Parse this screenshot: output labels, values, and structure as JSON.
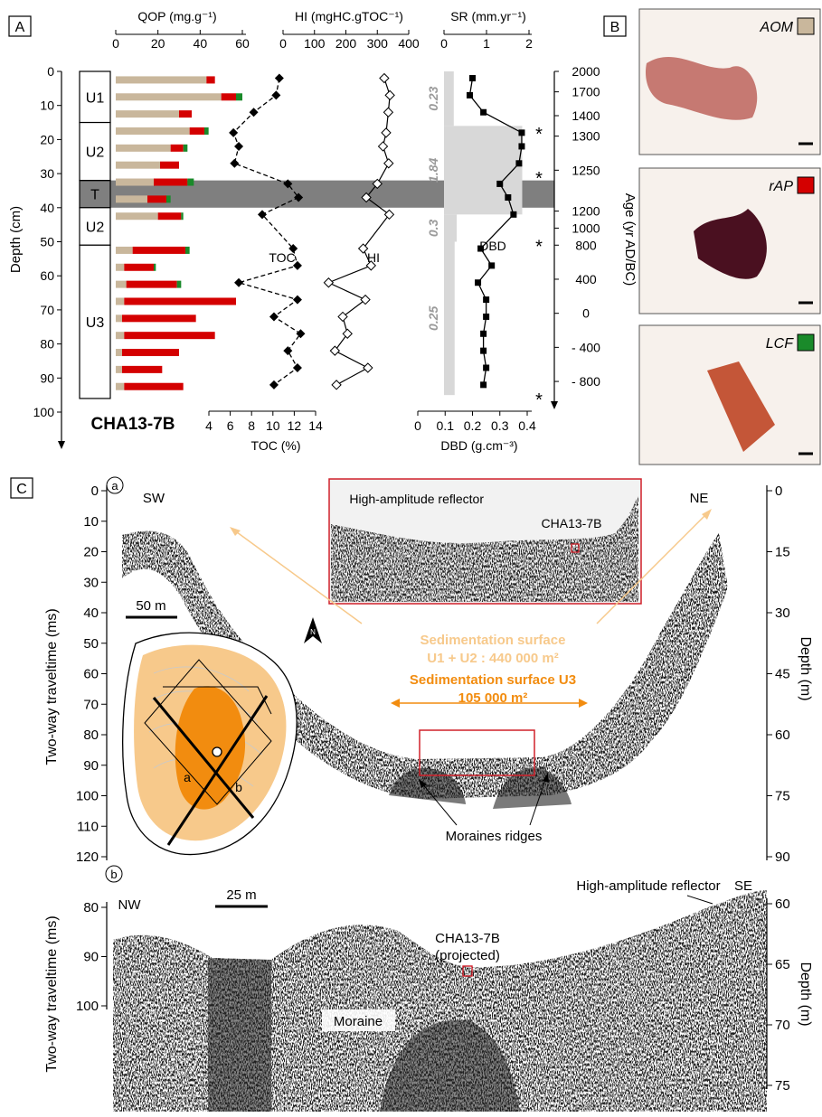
{
  "panel_letters": {
    "a": "A",
    "b": "B",
    "c": "C",
    "sub_a": "a",
    "sub_b": "b"
  },
  "core_name": "CHA13-7B",
  "depth_axis": {
    "label": "Depth (cm)",
    "ticks": [
      0,
      10,
      20,
      30,
      40,
      50,
      60,
      70,
      80,
      90,
      100
    ]
  },
  "units": [
    {
      "name": "U1",
      "top": 0,
      "bottom": 15
    },
    {
      "name": "U2",
      "top": 15,
      "bottom": 32
    },
    {
      "name": "T",
      "top": 32,
      "bottom": 40
    },
    {
      "name": "U2",
      "top": 40,
      "bottom": 51
    },
    {
      "name": "U3",
      "top": 51,
      "bottom": 96
    }
  ],
  "tephra_band": {
    "top": 32,
    "bottom": 40,
    "color": "#7f7f7f"
  },
  "colors": {
    "aom": "#c9b79c",
    "rap": "#d40000",
    "lcf": "#1a8a2a",
    "orange_light": "#f7c98b",
    "orange": "#f28c0f",
    "red_box": "#d0202a",
    "gray_sr": "#d8d8d8"
  },
  "qop": {
    "label": "QOP (mg.g⁻¹)",
    "ticks": [
      0,
      20,
      40,
      60
    ],
    "legend": {
      "aom": "AOM",
      "rap": "rAP",
      "lcf": "LCF"
    },
    "chart_data": {
      "type": "bar",
      "orientation": "horizontal",
      "depths": [
        2.5,
        7.5,
        12.5,
        17.5,
        22.5,
        27.5,
        32.5,
        37.5,
        42.5,
        52.5,
        57.5,
        62.5,
        67.5,
        72.5,
        77.5,
        82.5,
        87.5,
        92.5
      ],
      "series": [
        {
          "name": "AOM",
          "values": [
            43,
            50,
            30,
            35,
            26,
            21,
            18,
            15,
            20,
            8,
            4,
            5,
            4,
            3,
            4,
            3,
            3,
            4
          ]
        },
        {
          "name": "rAP",
          "values": [
            4,
            7,
            6,
            7,
            6,
            9,
            16,
            9,
            11,
            25,
            14,
            24,
            53,
            35,
            43,
            27,
            19,
            28
          ]
        },
        {
          "name": "LCF",
          "values": [
            0,
            3,
            0,
            2,
            2,
            0,
            3,
            2,
            1,
            2,
            1,
            2,
            0,
            0,
            0,
            0,
            0,
            0
          ]
        }
      ],
      "xlim": [
        0,
        64
      ]
    }
  },
  "hi_toc": {
    "hi_label": "HI (mgHC.gTOC⁻¹)",
    "hi_ticks": [
      0,
      100,
      200,
      300,
      400
    ],
    "toc_label": "TOC (%)",
    "toc_ticks": [
      4,
      6,
      8,
      10,
      12,
      14
    ],
    "toc_curve_label": "TOC",
    "hi_curve_label": "HI",
    "chart_data": {
      "type": "line",
      "toc": {
        "name": "TOC",
        "depth": [
          2,
          7,
          12,
          18,
          22,
          27,
          33,
          37,
          42,
          52,
          57,
          62,
          67,
          72,
          77,
          82,
          87,
          92
        ],
        "values": [
          10.6,
          10.3,
          8.2,
          6.3,
          6.8,
          6.4,
          11.4,
          12.4,
          9.0,
          11.9,
          12.3,
          6.8,
          12.3,
          10.1,
          12.6,
          11.4,
          12.3,
          10.1
        ]
      },
      "hi": {
        "name": "HI",
        "depth": [
          2,
          7,
          12,
          18,
          22,
          27,
          33,
          37,
          42,
          52,
          57,
          62,
          67,
          72,
          77,
          82,
          87,
          92
        ],
        "values": [
          322,
          340,
          335,
          328,
          318,
          336,
          300,
          265,
          338,
          255,
          280,
          145,
          262,
          190,
          205,
          165,
          270,
          170
        ]
      }
    }
  },
  "sr_dbd": {
    "sr_label": "SR (mm.yr⁻¹)",
    "sr_ticks": [
      0,
      1,
      2
    ],
    "dbd_label": "DBD (g.cm⁻³)",
    "dbd_ticks": [
      0,
      0.1,
      0.2,
      0.3,
      0.4
    ],
    "dbd_curve_label": "DBD",
    "sr_blocks": [
      {
        "top": 0,
        "bottom": 16,
        "value": 0.23,
        "label": "0.23"
      },
      {
        "top": 16,
        "bottom": 42,
        "value": 1.84,
        "label": "1.84"
      },
      {
        "top": 42,
        "bottom": 50,
        "value": 0.3,
        "label": "0.3"
      },
      {
        "top": 50,
        "bottom": 95,
        "value": 0.25,
        "label": "0.25"
      }
    ],
    "dbd_chart_data": {
      "type": "line",
      "depth": [
        2,
        7,
        12,
        18,
        22,
        27,
        33,
        37,
        42,
        52,
        57,
        62,
        67,
        72,
        77,
        82,
        87,
        92
      ],
      "values": [
        0.2,
        0.19,
        0.24,
        0.38,
        0.38,
        0.37,
        0.3,
        0.33,
        0.35,
        0.23,
        0.27,
        0.22,
        0.25,
        0.25,
        0.24,
        0.24,
        0.25,
        0.24
      ]
    },
    "tiepoint_marks": [
      {
        "depth": 17,
        "mark": "*"
      },
      {
        "depth": 30,
        "mark": "*"
      },
      {
        "depth": 50,
        "mark": "*"
      },
      {
        "depth": 95,
        "mark": "*"
      }
    ]
  },
  "age_axis": {
    "label": "Age (yr AD/BC)",
    "ticks": [
      {
        "depth": 0,
        "label": "2000"
      },
      {
        "depth": 6,
        "label": "1700"
      },
      {
        "depth": 13,
        "label": "1400"
      },
      {
        "depth": 19,
        "label": "1300"
      },
      {
        "depth": 29,
        "label": "1250"
      },
      {
        "depth": 41,
        "label": "1200"
      },
      {
        "depth": 46,
        "label": "1000"
      },
      {
        "depth": 51,
        "label": "800"
      },
      {
        "depth": 61,
        "label": "400"
      },
      {
        "depth": 71,
        "label": "0"
      },
      {
        "depth": 81,
        "label": "- 400"
      },
      {
        "depth": 91,
        "label": "- 800"
      }
    ]
  },
  "photos": [
    {
      "label": "AOM",
      "legend": "aom"
    },
    {
      "label": "rAP",
      "legend": "rap"
    },
    {
      "label": "LCF",
      "legend": "lcf"
    }
  ],
  "seismic_a": {
    "twt_label": "Two-way traveltime (ms)",
    "twt_ticks": [
      0,
      10,
      20,
      30,
      40,
      50,
      60,
      70,
      80,
      90,
      100,
      110,
      120
    ],
    "depth_label": "Depth (m)",
    "depth_ticks": [
      0,
      15,
      30,
      45,
      60,
      75,
      90
    ],
    "sw": "SW",
    "ne": "NE",
    "scale": "50 m",
    "inset_reflector": "High-amplitude reflector",
    "inset_core": "CHA13-7B",
    "surface_u12_title": "Sedimentation surface",
    "surface_u12_value": "U1 + U2 : 440 000 m²",
    "surface_u3_title": "Sedimentation surface U3",
    "surface_u3_value": "105 000 m²",
    "moraines": "Moraines ridges",
    "map_a": "a",
    "map_b": "b",
    "north": "N"
  },
  "seismic_b": {
    "twt_label": "Two-way traveltime (ms)",
    "twt_ticks": [
      80,
      90,
      100
    ],
    "depth_label": "Depth (m)",
    "depth_ticks": [
      60,
      65,
      70,
      75
    ],
    "nw": "NW",
    "se": "SE",
    "scale": "25 m",
    "reflector": "High-amplitude reflector",
    "core": "CHA13-7B",
    "core_note": "(projected)",
    "moraine": "Moraine"
  }
}
